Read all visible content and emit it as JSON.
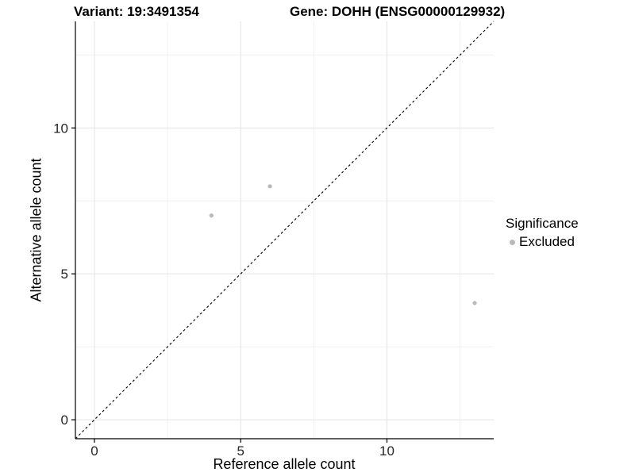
{
  "header": {
    "variant_title": "Variant: 19:3491354",
    "gene_title": "Gene: DOHH (ENSG00000129932)"
  },
  "chart_data": {
    "type": "scatter",
    "title": "Variant: 19:3491354   Gene: DOHH (ENSG00000129932)",
    "xlabel": "Reference allele count",
    "ylabel": "Alternative allele count",
    "xlim": [
      -0.65,
      13.65
    ],
    "ylim": [
      -0.65,
      13.65
    ],
    "x_ticks": [
      0,
      5,
      10
    ],
    "y_ticks": [
      0,
      5,
      10
    ],
    "x_minor_ticks": [
      2.5,
      7.5,
      12.5
    ],
    "y_minor_ticks": [
      2.5,
      7.5,
      12.5
    ],
    "grid": "major+minor",
    "legend": {
      "title": "Significance",
      "position": "right",
      "items": [
        {
          "label": "Excluded",
          "color": "#b9b9b9"
        }
      ]
    },
    "series": [
      {
        "name": "Excluded",
        "color": "#b9b9b9",
        "points": [
          [
            4,
            7
          ],
          [
            6,
            8
          ],
          [
            13,
            4
          ]
        ]
      }
    ],
    "reference_line": {
      "slope": 1,
      "intercept": 0,
      "style": "dashed",
      "color": "#000000"
    }
  },
  "style": {
    "grid_major_color": "#e3e3e3",
    "grid_minor_color": "#f1f1f1",
    "axis_color": "#000000",
    "tick_label_color": "#262626",
    "point_radius": 2.6,
    "tick_font_size": 17
  }
}
